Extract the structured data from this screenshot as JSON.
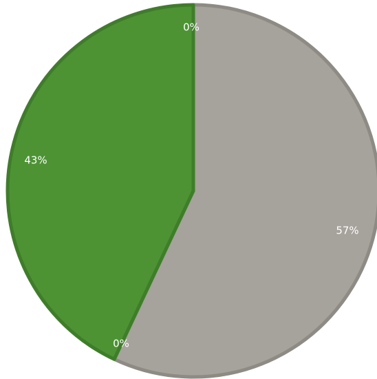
{
  "chart_data": {
    "type": "pie",
    "start_angle_deg": 0,
    "direction": "clockwise",
    "slices": [
      {
        "label": "57%",
        "value": 57,
        "color": "#a6a29c",
        "edge": "#8e8a84"
      },
      {
        "label": "0%",
        "value": 0,
        "color": "#4d9334",
        "edge": "#3f7d2a"
      },
      {
        "label": "43%",
        "value": 43,
        "color": "#4d9334",
        "edge": "#3f7d2a"
      },
      {
        "label": "0%",
        "value": 0,
        "color": "#a6a29c",
        "edge": "#8e8a84"
      }
    ],
    "legend": "none",
    "title": ""
  }
}
